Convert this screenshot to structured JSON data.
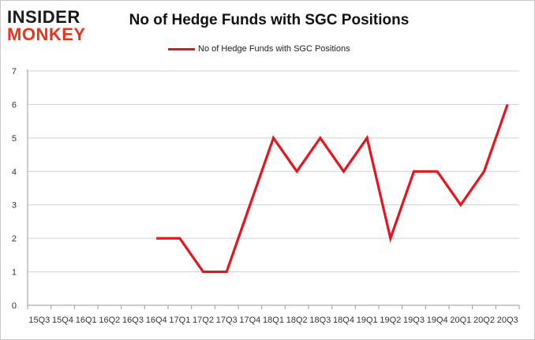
{
  "logo": {
    "line1": "INSIDER",
    "line2": "MONKEY"
  },
  "chart_data": {
    "type": "line",
    "title": "No of Hedge Funds with SGC Positions",
    "xlabel": "",
    "ylabel": "",
    "categories": [
      "15Q3",
      "15Q4",
      "16Q1",
      "16Q2",
      "16Q3",
      "16Q4",
      "17Q1",
      "17Q2",
      "17Q3",
      "17Q4",
      "18Q1",
      "18Q2",
      "18Q3",
      "18Q4",
      "19Q1",
      "19Q2",
      "19Q3",
      "19Q4",
      "20Q1",
      "20Q2",
      "20Q3"
    ],
    "series": [
      {
        "name": "No of Hedge Funds with SGC Positions",
        "color": "#e8141c",
        "values": [
          null,
          null,
          null,
          null,
          null,
          2,
          2,
          1,
          1,
          3,
          5,
          4,
          5,
          4,
          5,
          2,
          4,
          4,
          3,
          4,
          6
        ]
      }
    ],
    "ylim": [
      0,
      7
    ],
    "yticks": [
      0,
      1,
      2,
      3,
      4,
      5,
      6,
      7
    ],
    "grid": true,
    "legend": "top-center"
  }
}
